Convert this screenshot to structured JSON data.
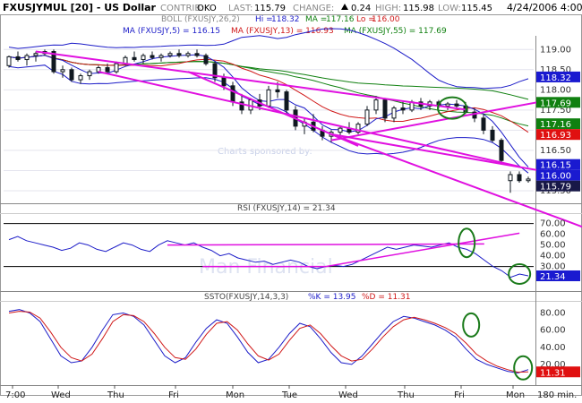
{
  "header": {
    "symbol": "FXUSJYMUL [20] - US Dollar",
    "contrib_label": "CONTRIB:",
    "contrib": "OKO",
    "last_label": "LAST:",
    "last": "115.79",
    "change_label": "CHANGE:",
    "change": "0.24",
    "high_label": "HIGH:",
    "high": "115.98",
    "low_label": "LOW:",
    "low": "115.45",
    "datetime": "4/24/2006 4:00"
  },
  "panels": {
    "boll": {
      "name": "BOLL (FXUSJY,26,2)",
      "hi_label": "Hi =",
      "hi": "118.32",
      "ma_label": "MA =",
      "ma": "117.16",
      "lo_label": "Lo =",
      "lo": "116.00"
    },
    "ma": {
      "ma5": "MA (FXUSJY,5) = 116.15",
      "ma13": "MA (FXUSJY,13) = 116.93",
      "ma55": "MA (FXUSJY,55) = 117.69"
    },
    "rsi": {
      "label": "RSI (FXUSJY,14) = 21.34"
    },
    "ssto": {
      "prefix": "SSTO(FXUSJY,14,3,3)",
      "k_label": "%K = 13.95",
      "d_label": "%D = 11.31"
    }
  },
  "watermark": {
    "sponsor": "Charts sponsored by:",
    "brand": "Man Financial"
  },
  "colors": {
    "bg": "#ffffff",
    "boll": "#1c1cc8",
    "ma5": "#1c1cc8",
    "ma13": "#d01818",
    "ma55": "#108010",
    "trend": "#e010e0",
    "marker": "#1a7a1a",
    "candle": "#101820",
    "tag_blue": "#1a1ad0",
    "tag_green": "#108010",
    "tag_red": "#e01010",
    "tag_dark": "#181848",
    "tag_white": "#ffffff"
  },
  "chart_data": [
    {
      "type": "candlestick",
      "title": "FXUSJYMUL [20] - US Dollar",
      "ylim": [
        115.3,
        119.25
      ],
      "yticks": [
        "119.00",
        "118.50",
        "118.00",
        "117.50",
        "117.00",
        "116.50",
        "116.00",
        "115.50"
      ],
      "x_labels": [
        "7:00",
        "Wed",
        "Thu",
        "Fri",
        "Mon",
        "Tue",
        "Wed",
        "Thu",
        "Fri",
        "Mon",
        "180 min."
      ],
      "price_tags": [
        {
          "value": "118.32",
          "color": "tag_blue"
        },
        {
          "value": "117.69",
          "color": "tag_green"
        },
        {
          "value": "117.16",
          "color": "tag_green"
        },
        {
          "value": "116.93",
          "color": "tag_red"
        },
        {
          "value": "116.15",
          "color": "tag_blue"
        },
        {
          "value": "116.00",
          "color": "tag_blue"
        },
        {
          "value": "115.79",
          "color": "tag_dark"
        }
      ],
      "candles": [
        {
          "o": 118.6,
          "h": 118.85,
          "l": 118.55,
          "c": 118.82
        },
        {
          "o": 118.82,
          "h": 118.95,
          "l": 118.7,
          "c": 118.75
        },
        {
          "o": 118.75,
          "h": 118.9,
          "l": 118.6,
          "c": 118.85
        },
        {
          "o": 118.85,
          "h": 118.95,
          "l": 118.7,
          "c": 118.9
        },
        {
          "o": 118.9,
          "h": 119.0,
          "l": 118.85,
          "c": 118.95
        },
        {
          "o": 118.95,
          "h": 119.0,
          "l": 118.4,
          "c": 118.45
        },
        {
          "o": 118.45,
          "h": 118.6,
          "l": 118.3,
          "c": 118.5
        },
        {
          "o": 118.5,
          "h": 118.55,
          "l": 118.2,
          "c": 118.25
        },
        {
          "o": 118.25,
          "h": 118.4,
          "l": 118.15,
          "c": 118.35
        },
        {
          "o": 118.35,
          "h": 118.5,
          "l": 118.25,
          "c": 118.45
        },
        {
          "o": 118.45,
          "h": 118.6,
          "l": 118.4,
          "c": 118.55
        },
        {
          "o": 118.55,
          "h": 118.65,
          "l": 118.4,
          "c": 118.45
        },
        {
          "o": 118.45,
          "h": 118.7,
          "l": 118.4,
          "c": 118.65
        },
        {
          "o": 118.65,
          "h": 118.85,
          "l": 118.6,
          "c": 118.8
        },
        {
          "o": 118.8,
          "h": 118.95,
          "l": 118.7,
          "c": 118.75
        },
        {
          "o": 118.75,
          "h": 118.9,
          "l": 118.65,
          "c": 118.85
        },
        {
          "o": 118.85,
          "h": 118.95,
          "l": 118.75,
          "c": 118.8
        },
        {
          "o": 118.8,
          "h": 118.9,
          "l": 118.7,
          "c": 118.85
        },
        {
          "o": 118.85,
          "h": 118.95,
          "l": 118.8,
          "c": 118.9
        },
        {
          "o": 118.9,
          "h": 119.0,
          "l": 118.8,
          "c": 118.85
        },
        {
          "o": 118.85,
          "h": 118.95,
          "l": 118.8,
          "c": 118.9
        },
        {
          "o": 118.9,
          "h": 119.0,
          "l": 118.8,
          "c": 118.85
        },
        {
          "o": 118.85,
          "h": 118.9,
          "l": 118.6,
          "c": 118.65
        },
        {
          "o": 118.65,
          "h": 118.7,
          "l": 118.2,
          "c": 118.3
        },
        {
          "o": 118.3,
          "h": 118.4,
          "l": 118.0,
          "c": 118.1
        },
        {
          "o": 118.1,
          "h": 118.2,
          "l": 117.6,
          "c": 117.7
        },
        {
          "o": 117.7,
          "h": 117.9,
          "l": 117.4,
          "c": 117.5
        },
        {
          "o": 117.5,
          "h": 117.8,
          "l": 117.4,
          "c": 117.75
        },
        {
          "o": 117.75,
          "h": 117.9,
          "l": 117.5,
          "c": 117.6
        },
        {
          "o": 117.6,
          "h": 118.1,
          "l": 117.55,
          "c": 118.0
        },
        {
          "o": 118.0,
          "h": 118.2,
          "l": 117.8,
          "c": 117.95
        },
        {
          "o": 117.95,
          "h": 118.0,
          "l": 117.4,
          "c": 117.5
        },
        {
          "o": 117.5,
          "h": 117.6,
          "l": 117.0,
          "c": 117.1
        },
        {
          "o": 117.1,
          "h": 117.3,
          "l": 116.9,
          "c": 117.2
        },
        {
          "o": 117.2,
          "h": 117.4,
          "l": 116.95,
          "c": 117.0
        },
        {
          "o": 117.0,
          "h": 117.1,
          "l": 116.75,
          "c": 116.85
        },
        {
          "o": 116.85,
          "h": 117.0,
          "l": 116.7,
          "c": 116.95
        },
        {
          "o": 116.95,
          "h": 117.1,
          "l": 116.8,
          "c": 117.05
        },
        {
          "o": 117.05,
          "h": 117.2,
          "l": 116.9,
          "c": 116.95
        },
        {
          "o": 116.95,
          "h": 117.2,
          "l": 116.9,
          "c": 117.15
        },
        {
          "o": 117.15,
          "h": 117.6,
          "l": 117.1,
          "c": 117.5
        },
        {
          "o": 117.5,
          "h": 117.85,
          "l": 117.4,
          "c": 117.75
        },
        {
          "o": 117.75,
          "h": 117.8,
          "l": 117.2,
          "c": 117.3
        },
        {
          "o": 117.3,
          "h": 117.6,
          "l": 117.2,
          "c": 117.55
        },
        {
          "o": 117.55,
          "h": 117.7,
          "l": 117.4,
          "c": 117.5
        },
        {
          "o": 117.5,
          "h": 117.75,
          "l": 117.45,
          "c": 117.7
        },
        {
          "o": 117.7,
          "h": 117.8,
          "l": 117.5,
          "c": 117.6
        },
        {
          "o": 117.6,
          "h": 117.75,
          "l": 117.5,
          "c": 117.7
        },
        {
          "o": 117.7,
          "h": 117.75,
          "l": 117.55,
          "c": 117.6
        },
        {
          "o": 117.6,
          "h": 117.7,
          "l": 117.5,
          "c": 117.65
        },
        {
          "o": 117.65,
          "h": 117.75,
          "l": 117.55,
          "c": 117.6
        },
        {
          "o": 117.6,
          "h": 117.7,
          "l": 117.4,
          "c": 117.45
        },
        {
          "o": 117.45,
          "h": 117.55,
          "l": 117.2,
          "c": 117.3
        },
        {
          "o": 117.3,
          "h": 117.4,
          "l": 116.9,
          "c": 117.0
        },
        {
          "o": 117.0,
          "h": 117.1,
          "l": 116.7,
          "c": 116.75
        },
        {
          "o": 116.75,
          "h": 116.8,
          "l": 116.15,
          "c": 116.25
        },
        {
          "o": 115.75,
          "h": 115.98,
          "l": 115.45,
          "c": 115.9
        },
        {
          "o": 115.9,
          "h": 115.98,
          "l": 115.7,
          "c": 115.75
        },
        {
          "o": 115.75,
          "h": 115.85,
          "l": 115.7,
          "c": 115.79
        }
      ]
    },
    {
      "type": "line",
      "title": "RSI (FXUSJY,14) = 21.34",
      "ylim": [
        8,
        78
      ],
      "yticks": [
        "70.00",
        "60.00",
        "50.00",
        "40.00",
        "30.00",
        "20.00"
      ],
      "reference_lines": [
        70,
        30
      ],
      "last_value": "21.34",
      "series": [
        {
          "values": [
            55,
            58,
            54,
            52,
            50,
            48,
            45,
            47,
            52,
            50,
            46,
            44,
            48,
            52,
            50,
            46,
            44,
            50,
            54,
            52,
            50,
            52,
            48,
            45,
            40,
            42,
            38,
            36,
            34,
            35,
            32,
            34,
            36,
            34,
            30,
            28,
            30,
            31,
            30,
            32,
            36,
            40,
            44,
            48,
            46,
            48,
            50,
            49,
            48,
            50,
            52,
            48,
            46,
            42,
            36,
            30,
            26,
            20,
            23,
            21.34
          ]
        }
      ]
    },
    {
      "type": "line",
      "title": "SSTO(FXUSJY,14,3,3)",
      "ylim": [
        -2,
        92
      ],
      "yticks": [
        "80.00",
        "60.00",
        "40.00",
        "20.00"
      ],
      "last_value": "11.31",
      "series": [
        {
          "name": "%K",
          "values": [
            82,
            84,
            80,
            70,
            50,
            30,
            22,
            24,
            40,
            60,
            78,
            80,
            76,
            66,
            48,
            30,
            22,
            28,
            46,
            62,
            72,
            68,
            52,
            34,
            22,
            26,
            40,
            56,
            68,
            64,
            50,
            34,
            22,
            20,
            30,
            44,
            58,
            70,
            76,
            74,
            70,
            66,
            60,
            52,
            38,
            26,
            20,
            16,
            12,
            10,
            13.95
          ]
        },
        {
          "name": "%D",
          "values": [
            80,
            82,
            81,
            74,
            58,
            40,
            28,
            24,
            32,
            50,
            70,
            78,
            77,
            70,
            56,
            40,
            28,
            26,
            38,
            55,
            68,
            70,
            60,
            44,
            30,
            25,
            32,
            48,
            62,
            66,
            56,
            42,
            30,
            24,
            26,
            38,
            52,
            64,
            72,
            75,
            72,
            68,
            63,
            56,
            45,
            32,
            24,
            18,
            14,
            11,
            11.31
          ]
        }
      ]
    }
  ]
}
